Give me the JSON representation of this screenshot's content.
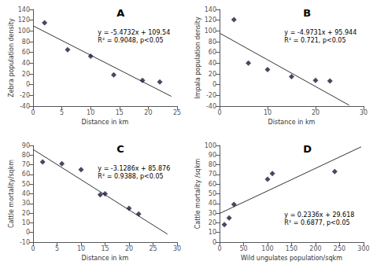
{
  "chart_data": [
    {
      "type": "scatter",
      "title": "A",
      "xlabel": "Distance in km",
      "ylabel": "Zebra population density",
      "annotations": [
        "y = -5.4732x + 109.54",
        "R² = 0.9048, p<0.05"
      ],
      "series": [
        {
          "type": "scatter",
          "x": [
            2,
            6,
            10,
            14,
            19,
            22
          ],
          "values": [
            115,
            65,
            53,
            18,
            8,
            5
          ],
          "color": "#1a1a3a",
          "marker": "diamond"
        },
        {
          "type": "line",
          "x": [
            0,
            24
          ],
          "values": [
            109.54,
            -21.8168
          ],
          "color": "#333333",
          "line_style": "solid"
        }
      ],
      "xlim": [
        0,
        25
      ],
      "ylim": [
        -40,
        140
      ],
      "xticks": [
        0,
        5,
        10,
        15,
        20,
        25
      ],
      "yticks": [
        -40,
        -20,
        0,
        20,
        40,
        60,
        80,
        100,
        120,
        140
      ],
      "grid": false
    },
    {
      "type": "scatter",
      "title": "B",
      "xlabel": "Distance in km",
      "ylabel": "Impala population density",
      "annotations": [
        "y = -4.9731x + 95.944",
        "R² = 0.721, p<0.05"
      ],
      "series": [
        {
          "type": "scatter",
          "x": [
            3,
            6,
            10,
            15,
            20,
            23
          ],
          "values": [
            121,
            40,
            28,
            15,
            8,
            7
          ],
          "color": "#1a1a3a",
          "marker": "diamond"
        },
        {
          "type": "line",
          "x": [
            0,
            27
          ],
          "values": [
            95.944,
            -38.3297
          ],
          "color": "#333333",
          "line_style": "solid"
        }
      ],
      "xlim": [
        0,
        30
      ],
      "ylim": [
        -40,
        140
      ],
      "xticks": [
        0,
        10,
        20,
        30
      ],
      "yticks": [
        -40,
        -20,
        0,
        20,
        40,
        60,
        80,
        100,
        120,
        140
      ],
      "grid": false
    },
    {
      "type": "scatter",
      "title": "C",
      "xlabel": "Distance in km",
      "ylabel": "Cattle mortality/sqkm",
      "annotations": [
        "y = -3.1286x + 85.876",
        "R² = 0.9388, p<0.05"
      ],
      "series": [
        {
          "type": "scatter",
          "x": [
            2,
            6,
            10,
            14,
            15,
            20,
            22
          ],
          "values": [
            73,
            71,
            65,
            39,
            40,
            25,
            19
          ],
          "color": "#1a1a3a",
          "marker": "diamond"
        },
        {
          "type": "line",
          "x": [
            0,
            28
          ],
          "values": [
            85.876,
            -1.7248
          ],
          "color": "#333333",
          "line_style": "solid"
        }
      ],
      "xlim": [
        0,
        30
      ],
      "ylim": [
        -10,
        90
      ],
      "xticks": [
        0,
        5,
        10,
        15,
        20,
        25,
        30
      ],
      "yticks": [
        -10,
        0,
        10,
        20,
        30,
        40,
        50,
        60,
        70,
        80,
        90
      ],
      "grid": false
    },
    {
      "type": "scatter",
      "title": "D",
      "xlabel": "Wild ungulates population/sqkm",
      "ylabel": "Cattle mortality /sqkm",
      "annotations": [
        "y = 0.2336x + 29.618",
        "R² = 0.6877, p<0.05"
      ],
      "series": [
        {
          "type": "scatter",
          "x": [
            10,
            20,
            30,
            100,
            110,
            240
          ],
          "values": [
            18,
            25,
            39,
            65,
            71,
            73
          ],
          "color": "#1a1a3a",
          "marker": "diamond"
        },
        {
          "type": "line",
          "x": [
            0,
            295
          ],
          "values": [
            29.618,
            98.53
          ],
          "color": "#333333",
          "line_style": "solid"
        }
      ],
      "xlim": [
        0,
        300
      ],
      "ylim": [
        0,
        100
      ],
      "xticks": [
        0,
        50,
        100,
        150,
        200,
        250,
        300
      ],
      "yticks": [
        0,
        10,
        20,
        30,
        40,
        50,
        60,
        70,
        80,
        90,
        100
      ],
      "grid": false
    }
  ]
}
